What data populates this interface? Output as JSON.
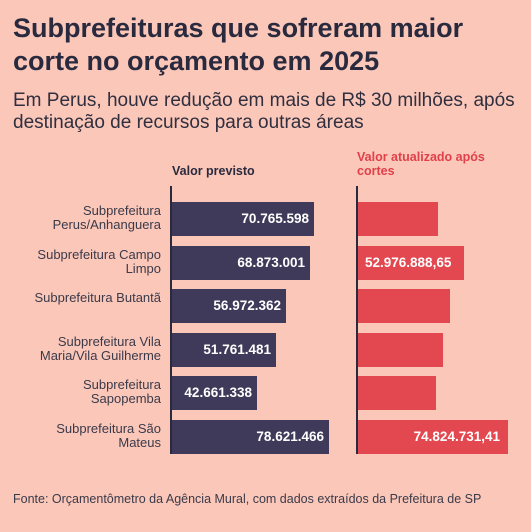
{
  "header": {
    "title": "Subprefeituras que sofreram maior corte no orçamento em 2025",
    "subtitle": "Em Perus, houve redução em mais de R$ 30 milhões, após destinação de recursos para outras áreas"
  },
  "chart_data": {
    "type": "bar",
    "orientation": "horizontal",
    "categories": [
      "Subprefeitura Perus/Anhanguera",
      "Subprefeitura Campo Limpo",
      "Subprefeitura Butantã",
      "Subprefeitura Vila Maria/Vila Guilherme",
      "Subprefeitura Sapopemba",
      "Subprefeitura São Mateus"
    ],
    "series": [
      {
        "name": "Valor previsto",
        "color": "#3f3a59",
        "values": [
          70765598,
          68873001,
          56972362,
          51761481,
          42661338,
          78621466
        ],
        "labels": [
          "70.765.598",
          "68.873.001",
          "56.972.362",
          "51.761.481",
          "42.661.338",
          "78.621.466"
        ]
      },
      {
        "name": "Valor atualizado após cortes",
        "color": "#e3474f",
        "values": [
          40000000,
          52976888.65,
          46000000,
          42500000,
          39000000,
          74824731.41
        ],
        "labels": [
          "",
          "52.976.888,65",
          "",
          "",
          "",
          "74.824.731,41"
        ]
      }
    ],
    "xlim": [
      0,
      85000000
    ]
  },
  "footer": {
    "source": "Fonte: Orçamentômetro da Agência Mural, com dados extraídos da Prefeitura de SP"
  }
}
